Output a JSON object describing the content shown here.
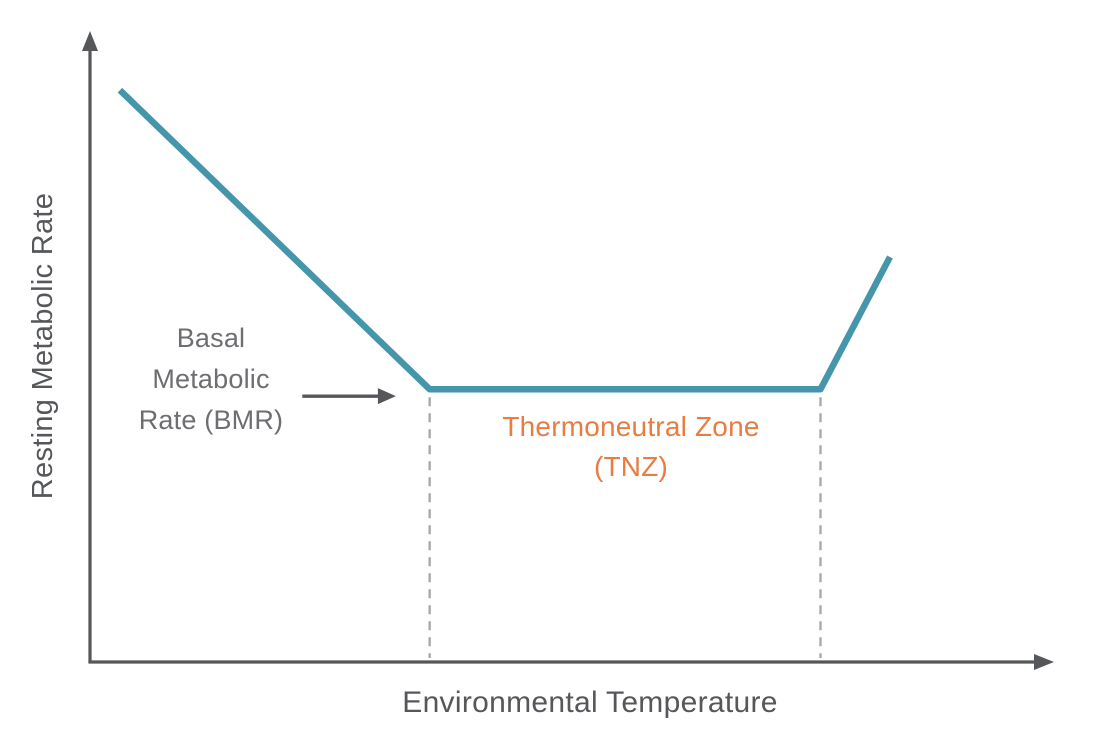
{
  "colors": {
    "curve": "#4696ab",
    "axis": "#55575a",
    "annotation_gray": "#6d6e71",
    "tnz_orange": "#e87c41",
    "dashed": "#a8aaad",
    "background": "#ffffff"
  },
  "chart_data": {
    "type": "line",
    "title": "",
    "xlabel": "Environmental Temperature",
    "ylabel": "Resting Metabolic Rate",
    "xlim": [
      0,
      1
    ],
    "ylim": [
      0,
      1
    ],
    "grid": false,
    "legend": false,
    "tick_labels": [],
    "axes_unitless": true,
    "series": [
      {
        "name": "Resting Metabolic Rate",
        "color_key": "curve",
        "x": [
          0.031,
          0.352,
          0.757,
          0.829
        ],
        "y": [
          0.912,
          0.435,
          0.435,
          0.646
        ]
      }
    ],
    "regions": [
      {
        "name": "Thermoneutral Zone",
        "x_start": 0.352,
        "x_end": 0.757,
        "boundary_style": "dashed"
      }
    ],
    "annotations": [
      {
        "id": "bmr",
        "text_lines": [
          "Basal",
          "Metabolic",
          "Rate (BMR)"
        ],
        "arrow": {
          "from_x": 0.22,
          "from_y": 0.424,
          "to_x": 0.317,
          "to_y": 0.424
        }
      },
      {
        "id": "tnz",
        "text_lines": [
          "Thermoneutral Zone",
          "(TNZ)"
        ]
      }
    ]
  }
}
